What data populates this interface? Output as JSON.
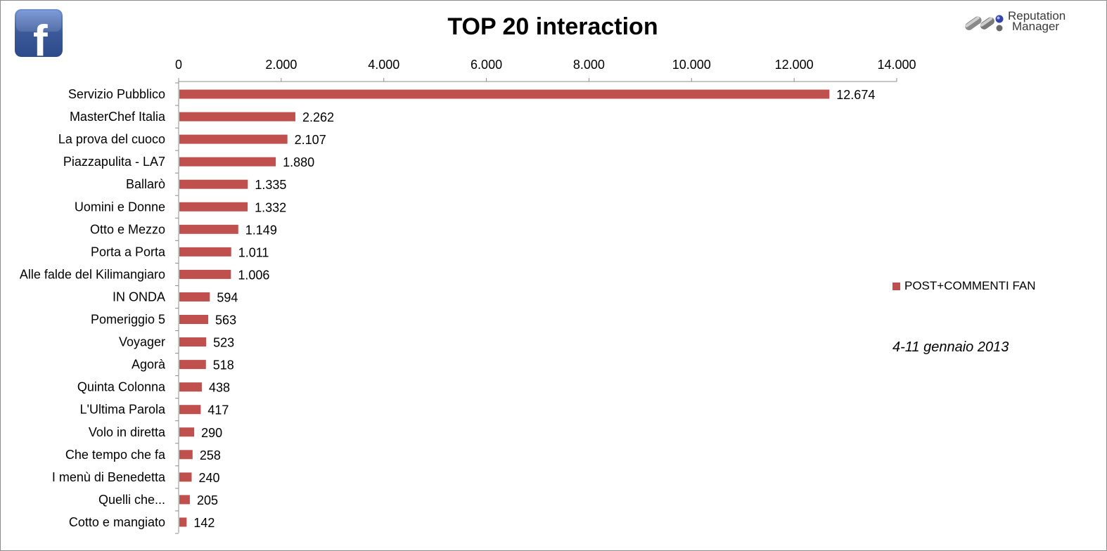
{
  "colors": {
    "bar": "#c0504d",
    "fb_blue": "#3b5998"
  },
  "branding": {
    "facebook_logo_letter": "f",
    "reputation_manager_line1": "Reputation",
    "reputation_manager_line2": "Manager"
  },
  "legend": {
    "label": "POST+COMMENTI FAN"
  },
  "date_note": "4-11 gennaio 2013",
  "chart_data": {
    "type": "bar",
    "orientation": "horizontal",
    "title": "TOP 20 interaction",
    "x_axis_position": "top",
    "xlim": [
      0,
      14000
    ],
    "x_ticks": [
      0,
      2000,
      4000,
      6000,
      8000,
      10000,
      12000,
      14000
    ],
    "x_tick_labels": [
      "0",
      "2.000",
      "4.000",
      "6.000",
      "8.000",
      "10.000",
      "12.000",
      "14.000"
    ],
    "grid": false,
    "legend_position": "right",
    "categories": [
      "Servizio Pubblico",
      "MasterChef Italia",
      "La prova del cuoco",
      "Piazzapulita - LA7",
      "Ballarò",
      "Uomini e Donne",
      "Otto e Mezzo",
      "Porta a Porta",
      "Alle falde del Kilimangiaro",
      "IN ONDA",
      "Pomeriggio 5",
      "Voyager",
      "Agorà",
      "Quinta Colonna",
      "L'Ultima Parola",
      "Volo in diretta",
      "Che tempo che fa",
      "I menù di Benedetta",
      "Quelli che...",
      "Cotto e mangiato"
    ],
    "series": [
      {
        "name": "POST+COMMENTI FAN",
        "values": [
          12674,
          2262,
          2107,
          1880,
          1335,
          1332,
          1149,
          1011,
          1006,
          594,
          563,
          523,
          518,
          438,
          417,
          290,
          258,
          240,
          205,
          142
        ],
        "value_labels": [
          "12.674",
          "2.262",
          "2.107",
          "1.880",
          "1.335",
          "1.332",
          "1.149",
          "1.011",
          "1.006",
          "594",
          "563",
          "523",
          "518",
          "438",
          "417",
          "290",
          "258",
          "240",
          "205",
          "142"
        ]
      }
    ]
  }
}
